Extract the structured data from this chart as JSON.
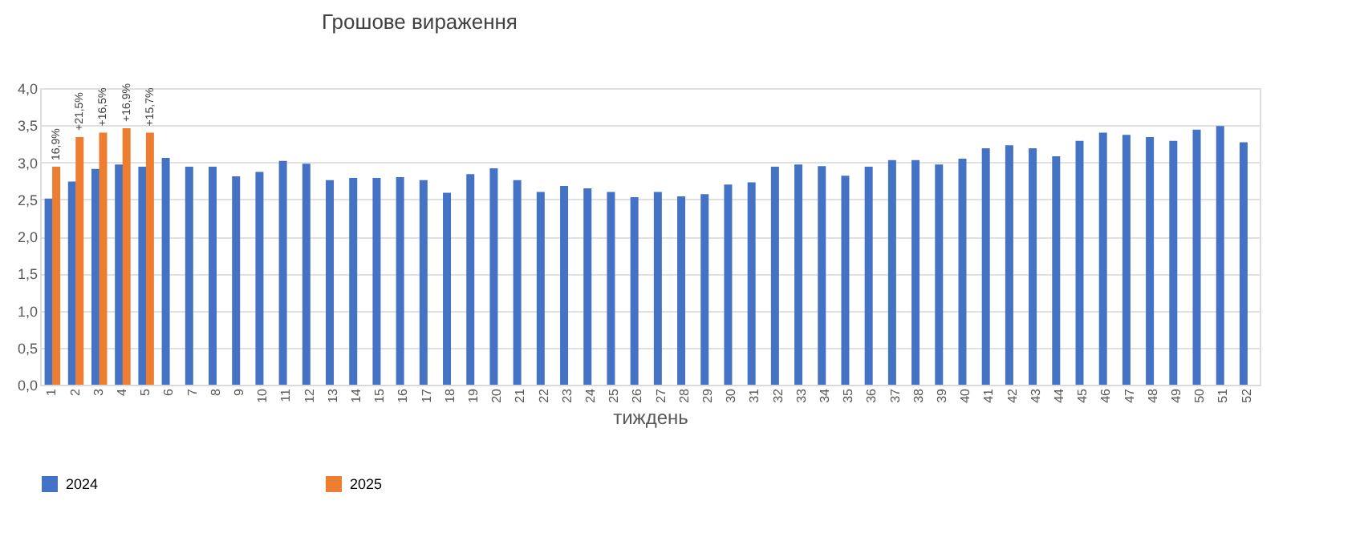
{
  "chart_data": {
    "type": "bar",
    "title": "Грошове вираження",
    "xlabel": "тиждень",
    "categories": [
      "1",
      "2",
      "3",
      "4",
      "5",
      "6",
      "7",
      "8",
      "9",
      "10",
      "11",
      "12",
      "13",
      "14",
      "15",
      "16",
      "17",
      "18",
      "19",
      "20",
      "21",
      "22",
      "23",
      "24",
      "25",
      "26",
      "27",
      "28",
      "29",
      "30",
      "31",
      "32",
      "33",
      "34",
      "35",
      "36",
      "37",
      "38",
      "39",
      "40",
      "41",
      "42",
      "43",
      "44",
      "45",
      "46",
      "47",
      "48",
      "49",
      "50",
      "51",
      "52"
    ],
    "series": [
      {
        "name": "2024",
        "color": "#4472c4",
        "values": [
          2.51,
          2.74,
          2.91,
          2.97,
          2.94,
          3.06,
          2.94,
          2.94,
          2.81,
          2.87,
          3.02,
          2.98,
          2.76,
          2.79,
          2.79,
          2.8,
          2.76,
          2.59,
          2.84,
          2.92,
          2.76,
          2.6,
          2.68,
          2.65,
          2.6,
          2.53,
          2.6,
          2.54,
          2.57,
          2.7,
          2.73,
          2.94,
          2.97,
          2.95,
          2.82,
          2.94,
          3.03,
          3.03,
          2.97,
          3.05,
          3.19,
          3.23,
          3.19,
          3.08,
          3.29,
          3.4,
          3.37,
          3.34,
          3.29,
          3.44,
          3.49,
          3.27
        ]
      },
      {
        "name": "2025",
        "color": "#ed7d31",
        "values": [
          2.94,
          3.34,
          3.4,
          3.46,
          3.4,
          null,
          null,
          null,
          null,
          null,
          null,
          null,
          null,
          null,
          null,
          null,
          null,
          null,
          null,
          null,
          null,
          null,
          null,
          null,
          null,
          null,
          null,
          null,
          null,
          null,
          null,
          null,
          null,
          null,
          null,
          null,
          null,
          null,
          null,
          null,
          null,
          null,
          null,
          null,
          null,
          null,
          null,
          null,
          null,
          null,
          null,
          null
        ]
      }
    ],
    "annotations": [
      {
        "text": "16,9%",
        "x": "1",
        "y": 2.94
      },
      {
        "text": "+21,5%",
        "x": "2",
        "y": 3.34
      },
      {
        "text": "+16,5%",
        "x": "3",
        "y": 3.4
      },
      {
        "text": "+16,9%",
        "x": "4",
        "y": 3.46
      },
      {
        "text": "+15,7%",
        "x": "5",
        "y": 3.4
      }
    ],
    "ylim": [
      0,
      4
    ],
    "yticks": [
      {
        "value": 0,
        "label": "0,0"
      },
      {
        "value": 0.5,
        "label": "0,5"
      },
      {
        "value": 1,
        "label": "1,0"
      },
      {
        "value": 1.5,
        "label": "1,5"
      },
      {
        "value": 2,
        "label": "2,0"
      },
      {
        "value": 2.5,
        "label": "2,5"
      },
      {
        "value": 3,
        "label": "3,0"
      },
      {
        "value": 3.5,
        "label": "3,5"
      },
      {
        "value": 4,
        "label": "4,0"
      }
    ],
    "grid": "y",
    "legend": "bottom"
  }
}
